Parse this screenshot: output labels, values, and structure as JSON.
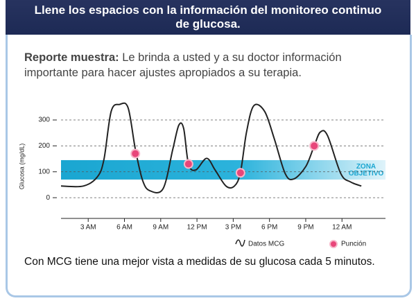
{
  "header": {
    "title": "Llene los espacios con la información del monitoreo continuo de glucosa."
  },
  "description": {
    "lead": "Reporte muestra:",
    "text": "Le brinda a usted y a su doctor información importante para hacer ajustes apropiados a su terapia."
  },
  "footer": "Con MCG tiene una mejor vista a medidas de su glucosa cada 5 minutos.",
  "chart_data": {
    "type": "line",
    "ylabel": "Glucosa (mg/dL)",
    "xlim": [
      0.75,
      27.6
    ],
    "ylim": [
      -80,
      375
    ],
    "xticks": [
      {
        "value": 3,
        "label": "3 AM"
      },
      {
        "value": 6,
        "label": "6 AM"
      },
      {
        "value": 9,
        "label": "9 AM"
      },
      {
        "value": 12,
        "label": "12 PM"
      },
      {
        "value": 15,
        "label": "3 PM"
      },
      {
        "value": 18,
        "label": "6 PM"
      },
      {
        "value": 21,
        "label": "9 PM"
      },
      {
        "value": 24,
        "label": "12 AM"
      }
    ],
    "yticks": [
      0,
      100,
      200,
      300
    ],
    "grid": true,
    "target_range": [
      70,
      145
    ],
    "target_label": "ZONA OBJETIVO",
    "series": [
      {
        "name": "Datos MCG",
        "type": "line",
        "color": "#222222",
        "x": [
          0.75,
          2.6,
          3.75,
          4.3,
          4.9,
          5.6,
          6.3,
          6.9,
          7.5,
          8.1,
          9.2,
          10,
          10.5,
          10.9,
          11.3,
          11.9,
          12.8,
          13.5,
          14.4,
          15.1,
          15.6,
          16.1,
          16.7,
          17.6,
          18.4,
          19.3,
          20,
          21,
          21.7,
          22.2,
          22.8,
          23.9,
          24.7,
          25.6
        ],
        "values": [
          45,
          45,
          80,
          147,
          333,
          360,
          347,
          187,
          67,
          27,
          35,
          187,
          280,
          267,
          130,
          107,
          152,
          107,
          45,
          45,
          98,
          253,
          355,
          333,
          227,
          93,
          72,
          120,
          200,
          253,
          240,
          93,
          61,
          45
        ]
      },
      {
        "name": "Punción",
        "type": "scatter",
        "color": "#e8467a",
        "x": [
          6.9,
          11.3,
          15.6,
          21.7
        ],
        "values": [
          170,
          130,
          96,
          200
        ]
      }
    ]
  }
}
